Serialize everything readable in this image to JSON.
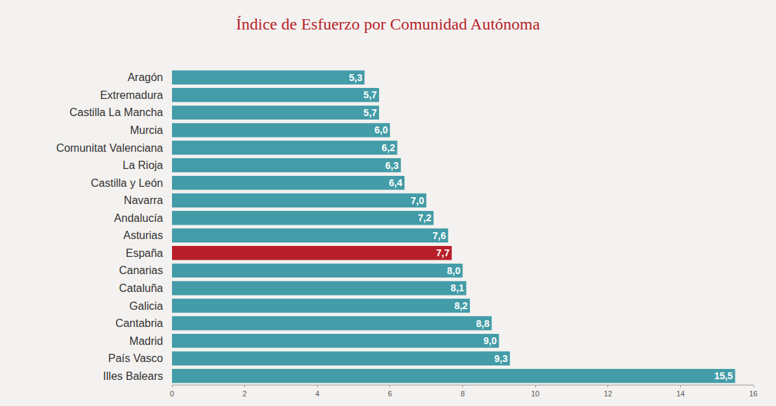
{
  "chart_data": {
    "type": "bar",
    "title": "Índice de Esfuerzo por Comunidad Autónoma",
    "orientation": "horizontal",
    "categories": [
      "Aragón",
      "Extremadura",
      "Castilla La Mancha",
      "Murcia",
      "Comunitat Valenciana",
      "La Rioja",
      "Castilla y León",
      "Navarra",
      "Andalucía",
      "Asturias",
      "España",
      "Canarias",
      "Cataluña",
      "Galicia",
      "Cantabria",
      "Madrid",
      "País Vasco",
      "Illes Balears"
    ],
    "values": [
      5.3,
      5.7,
      5.7,
      6.0,
      6.2,
      6.3,
      6.4,
      7.0,
      7.2,
      7.6,
      7.7,
      8.0,
      8.1,
      8.2,
      8.8,
      9.0,
      9.3,
      15.5
    ],
    "value_labels": [
      "5,3",
      "5,7",
      "5,7",
      "6,0",
      "6,2",
      "6,3",
      "6,4",
      "7,0",
      "7,2",
      "7,6",
      "7,7",
      "8,0",
      "8,1",
      "8,2",
      "8,8",
      "9,0",
      "9,3",
      "15,5"
    ],
    "colors": [
      "#439ca8",
      "#439ca8",
      "#439ca8",
      "#439ca8",
      "#439ca8",
      "#439ca8",
      "#439ca8",
      "#439ca8",
      "#439ca8",
      "#439ca8",
      "#b81f2a",
      "#439ca8",
      "#439ca8",
      "#439ca8",
      "#439ca8",
      "#439ca8",
      "#439ca8",
      "#439ca8"
    ],
    "xlim": [
      0,
      16
    ],
    "xticks": [
      0,
      2,
      4,
      6,
      8,
      10,
      12,
      14,
      16
    ],
    "data_labels": true,
    "grid": false
  }
}
